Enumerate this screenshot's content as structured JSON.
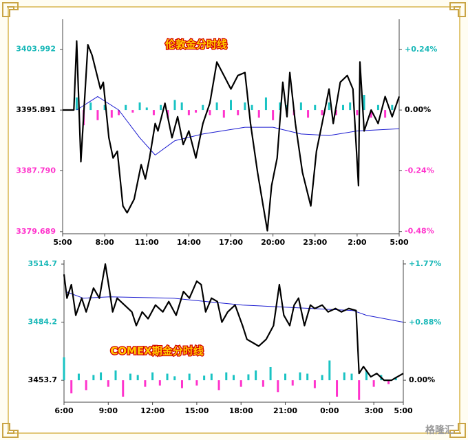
{
  "chart_data": [
    {
      "type": "line",
      "title": "伦敦金分时线",
      "xlim": [
        0,
        24
      ],
      "xticks": [
        {
          "value": 0,
          "label": "5:00"
        },
        {
          "value": 3,
          "label": "8:00"
        },
        {
          "value": 6,
          "label": "11:00"
        },
        {
          "value": 9,
          "label": "14:00"
        },
        {
          "value": 12,
          "label": "17:00"
        },
        {
          "value": 15,
          "label": "20:00"
        },
        {
          "value": 18,
          "label": "23:00"
        },
        {
          "value": 21,
          "label": "2:00"
        },
        {
          "value": 24,
          "label": "5:00"
        }
      ],
      "ylim": [
        3379.4,
        3408.0
      ],
      "yticks": [
        3379.689,
        {
          "value": 3387.79,
          "label": "3387.790"
        },
        3395.891,
        3403.992
      ],
      "ytick_colors": [
        "#ff33cc",
        "#ff33cc",
        "#000000",
        "#19b8b8"
      ],
      "y2lim": [
        -0.489,
        0.359
      ],
      "y2ticks": [
        {
          "value": -0.48,
          "label": "-0.48%"
        },
        {
          "value": -0.24,
          "label": "-0.24%"
        },
        {
          "value": 0,
          "label": "0.00%"
        },
        {
          "value": 0.24,
          "label": "+0.24%"
        }
      ],
      "y2tick_colors": [
        "#ff33cc",
        "#ff33cc",
        "#000000",
        "#19b8b8"
      ],
      "series": [
        {
          "type": "bar",
          "axis": "y2",
          "up_color": "#19c3c3",
          "down_color": "#ff33cc",
          "x": [
            1,
            1.5,
            2,
            2.5,
            3,
            3.5,
            4,
            4.5,
            5,
            5.5,
            6,
            6.5,
            7,
            7.5,
            8,
            8.5,
            9,
            9.5,
            10,
            10.5,
            11,
            11.5,
            12,
            12.5,
            13,
            13.5,
            14,
            14.5,
            15,
            15.5,
            16,
            16.5,
            17,
            17.5,
            18,
            18.5,
            19,
            19.5,
            20,
            20.5,
            21,
            21.5,
            22,
            22.5,
            23,
            23.5
          ],
          "values": [
            0.05,
            -0.06,
            0.03,
            -0.04,
            0.02,
            -0.03,
            -0.02,
            0.02,
            -0.01,
            0.03,
            0.01,
            -0.02,
            0.02,
            -0.03,
            0.04,
            0.03,
            -0.02,
            -0.01,
            0.02,
            -0.02,
            0.03,
            -0.03,
            0.04,
            -0.02,
            0.03,
            0.02,
            -0.03,
            0.05,
            -0.04,
            0.03,
            0.02,
            -0.02,
            0.03,
            -0.03,
            0.02,
            -0.02,
            0.03,
            -0.02,
            0.02,
            0.03,
            -0.02,
            0.06,
            -0.03,
            0.02,
            -0.03,
            0.02
          ]
        },
        {
          "type": "line",
          "color": "#1a1ad0",
          "width": 1,
          "x": [
            1,
            2.5,
            4,
            5.5,
            6.6,
            8,
            10,
            13,
            15,
            17,
            19,
            21,
            24
          ],
          "values": [
            3395.9,
            3397.7,
            3395.9,
            3392.2,
            3389.9,
            3391.8,
            3392.7,
            3393.6,
            3393.6,
            3392.7,
            3392.5,
            3393.1,
            3393.4
          ]
        },
        {
          "type": "line",
          "color": "#000000",
          "width": 2.2,
          "x": [
            0,
            0.8,
            1.0,
            1.3,
            1.8,
            2.1,
            2.7,
            2.9,
            3.3,
            3.6,
            3.9,
            4.3,
            4.6,
            5.1,
            5.6,
            5.9,
            6.2,
            6.6,
            6.8,
            7.3,
            7.8,
            8.2,
            8.6,
            9.0,
            9.5,
            10.0,
            10.5,
            11.0,
            11.5,
            12.0,
            12.5,
            13.0,
            13.4,
            13.9,
            14.3,
            14.6,
            14.9,
            15.3,
            15.7,
            16.0,
            16.2,
            16.6,
            17.1,
            17.7,
            18.1,
            18.6,
            19.0,
            19.3,
            19.8,
            20.3,
            20.7,
            21.1,
            21.2,
            21.5,
            22.0,
            22.5,
            23.0,
            23.5,
            24.0
          ],
          "values": [
            3395.9,
            3395.9,
            3405.1,
            3389.0,
            3404.6,
            3403.2,
            3398.7,
            3399.6,
            3392.2,
            3389.5,
            3390.4,
            3383.1,
            3382.2,
            3384.0,
            3388.6,
            3386.7,
            3389.5,
            3394.1,
            3393.1,
            3396.8,
            3392.2,
            3395.0,
            3391.3,
            3393.1,
            3389.5,
            3394.1,
            3396.8,
            3402.3,
            3400.5,
            3398.7,
            3400.5,
            3400.9,
            3394.1,
            3387.6,
            3383.1,
            3379.8,
            3385.8,
            3389.5,
            3399.6,
            3395.0,
            3400.9,
            3394.1,
            3387.6,
            3383.1,
            3390.4,
            3395.0,
            3398.7,
            3394.1,
            3399.6,
            3400.5,
            3398.7,
            3385.8,
            3402.3,
            3393.1,
            3395.9,
            3394.1,
            3397.7,
            3395.0,
            3397.7
          ]
        }
      ]
    },
    {
      "type": "line",
      "title": "COMEX期金分时线",
      "xlim": [
        0,
        23
      ],
      "xticks": [
        {
          "value": 0,
          "label": "6:00"
        },
        {
          "value": 3,
          "label": "9:00"
        },
        {
          "value": 6,
          "label": "12:00"
        },
        {
          "value": 9,
          "label": "15:00"
        },
        {
          "value": 12,
          "label": "18:00"
        },
        {
          "value": 15,
          "label": "21:00"
        },
        {
          "value": 18,
          "label": "0:00"
        },
        {
          "value": 21,
          "label": "3:00"
        },
        {
          "value": 23,
          "label": "5:00"
        }
      ],
      "ylim": [
        3442.2,
        3516.9
      ],
      "yticks": [
        3453.7,
        3484.2,
        3514.7
      ],
      "ytick_colors": [
        "#000000",
        "#19b8b8",
        "#19b8b8"
      ],
      "y2lim": [
        -0.334,
        1.832
      ],
      "y2ticks": [
        {
          "value": 0,
          "label": "0.00%"
        },
        {
          "value": 0.88,
          "label": "+0.88%"
        },
        {
          "value": 1.77,
          "label": "+1.77%"
        }
      ],
      "y2tick_colors": [
        "#000000",
        "#19b8b8",
        "#19b8b8"
      ],
      "series": [
        {
          "type": "bar",
          "axis": "y2",
          "up_color": "#19c3c3",
          "down_color": "#ff33cc",
          "x": [
            0,
            0.5,
            1,
            1.5,
            2,
            2.5,
            3,
            3.5,
            4,
            4.5,
            5,
            5.5,
            6,
            6.5,
            7,
            7.5,
            8,
            8.5,
            9,
            9.5,
            10,
            10.5,
            11,
            11.5,
            12,
            12.5,
            13,
            13.5,
            14,
            14.5,
            15,
            15.5,
            16,
            16.5,
            17,
            17.5,
            18,
            18.5,
            19,
            19.5,
            20,
            20.5,
            21,
            21.5,
            22,
            22.5
          ],
          "values": [
            0.35,
            -0.2,
            0.1,
            -0.15,
            0.08,
            0.12,
            -0.1,
            0.15,
            -0.25,
            0.1,
            0.08,
            -0.1,
            0.12,
            -0.08,
            0.1,
            0.06,
            -0.12,
            0.1,
            -0.08,
            0.07,
            0.1,
            -0.15,
            0.12,
            0.08,
            -0.1,
            0.09,
            0.15,
            -0.1,
            0.2,
            -0.18,
            0.1,
            -0.08,
            0.12,
            0.1,
            -0.12,
            0.08,
            0.3,
            -0.25,
            0.12,
            0.1,
            -0.3,
            0.15,
            -0.1,
            0.08,
            -0.06,
            0.05
          ]
        },
        {
          "type": "line",
          "color": "#1a1ad0",
          "width": 1,
          "x": [
            0.1,
            1.3,
            3.1,
            7.4,
            9.7,
            12.1,
            16.8,
            19.6,
            20.5,
            23
          ],
          "values": [
            3500.3,
            3496.8,
            3497.5,
            3496.8,
            3495.0,
            3493.2,
            3491.4,
            3490.3,
            3487.8,
            3484.2
          ]
        },
        {
          "type": "line",
          "color": "#000000",
          "width": 2.2,
          "x": [
            0,
            0.2,
            0.5,
            0.8,
            1.2,
            1.5,
            2.0,
            2.4,
            2.8,
            3.1,
            3.3,
            3.6,
            4.1,
            4.6,
            4.9,
            5.3,
            5.7,
            6.2,
            6.7,
            7.1,
            7.6,
            8.1,
            8.5,
            9.0,
            9.3,
            9.6,
            10.0,
            10.4,
            10.7,
            11.1,
            11.6,
            12.1,
            12.4,
            12.8,
            13.2,
            13.7,
            14.2,
            14.4,
            14.6,
            14.9,
            15.3,
            15.6,
            15.9,
            16.3,
            16.7,
            17.0,
            17.5,
            17.9,
            18.4,
            18.8,
            19.3,
            19.8,
            20.0,
            20.3,
            20.8,
            21.2,
            21.7,
            22.2,
            22.6,
            23.0
          ],
          "values": [
            3509.3,
            3496.8,
            3503.9,
            3487.8,
            3496.8,
            3489.6,
            3502.1,
            3496.8,
            3514.7,
            3500.3,
            3489.6,
            3496.8,
            3493.2,
            3489.6,
            3482.4,
            3489.6,
            3486.0,
            3493.2,
            3489.6,
            3495.0,
            3487.8,
            3500.3,
            3496.8,
            3505.7,
            3503.9,
            3489.6,
            3496.8,
            3495.0,
            3484.2,
            3489.6,
            3493.2,
            3482.4,
            3475.2,
            3473.4,
            3471.6,
            3475.2,
            3482.4,
            3493.2,
            3503.9,
            3487.8,
            3482.4,
            3493.2,
            3496.8,
            3482.4,
            3493.2,
            3491.4,
            3493.2,
            3489.6,
            3491.4,
            3489.6,
            3491.4,
            3490.3,
            3457.3,
            3460.9,
            3455.5,
            3457.3,
            3453.7,
            3453.7,
            3455.5,
            3457.3
          ]
        }
      ]
    }
  ],
  "watermark": "格隆汇"
}
